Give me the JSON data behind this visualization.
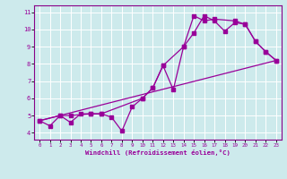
{
  "xlabel": "Windchill (Refroidissement éolien,°C)",
  "background_color": "#cdeaec",
  "grid_color": "#ffffff",
  "line_color": "#990099",
  "xlim": [
    -0.5,
    23.5
  ],
  "ylim": [
    3.6,
    11.4
  ],
  "xticks": [
    0,
    1,
    2,
    3,
    4,
    5,
    6,
    7,
    8,
    9,
    10,
    11,
    12,
    13,
    14,
    15,
    16,
    17,
    18,
    19,
    20,
    21,
    22,
    23
  ],
  "yticks": [
    4,
    5,
    6,
    7,
    8,
    9,
    10,
    11
  ],
  "line1_x": [
    0,
    1,
    2,
    3,
    4,
    5,
    6,
    7,
    8,
    9,
    10,
    11,
    12,
    13,
    14,
    15,
    16,
    17,
    18,
    19,
    20,
    21,
    22,
    23
  ],
  "line1_y": [
    4.7,
    4.4,
    5.0,
    4.6,
    5.1,
    5.1,
    5.1,
    4.9,
    4.1,
    5.5,
    6.0,
    6.6,
    7.9,
    6.5,
    9.0,
    9.8,
    10.8,
    10.5,
    9.9,
    10.4,
    10.3,
    9.3,
    8.7,
    8.2
  ],
  "line2_x": [
    0,
    2,
    3,
    5,
    6,
    10,
    11,
    12,
    14,
    15,
    16,
    17,
    19,
    20,
    21,
    22,
    23
  ],
  "line2_y": [
    4.7,
    5.0,
    5.0,
    5.1,
    5.1,
    6.0,
    6.6,
    7.9,
    9.0,
    10.8,
    10.5,
    10.6,
    10.5,
    10.3,
    9.3,
    8.7,
    8.2
  ],
  "line3_x": [
    0,
    23
  ],
  "line3_y": [
    4.7,
    8.2
  ]
}
